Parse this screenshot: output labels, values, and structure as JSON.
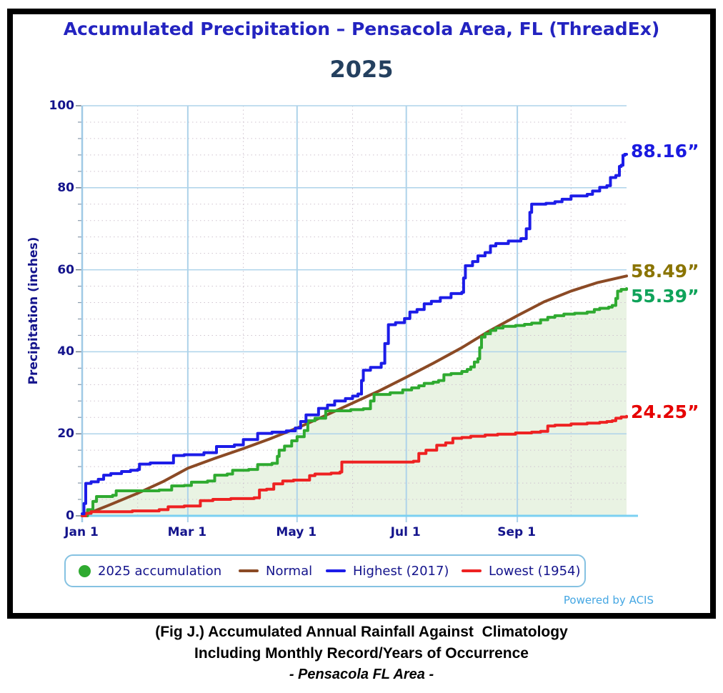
{
  "title": "Accumulated Precipitation – Pensacola Area, FL (ThreadEx)",
  "subtitle": "2025",
  "powered_by": "Powered by ACIS",
  "caption": {
    "line1": "(Fig J.) Accumulated Annual Rainfall Against  Climatology",
    "line2": "Including Monthly Record/Years of Occurrence",
    "line3": "- Pensacola FL Area -"
  },
  "colors": {
    "title": "#2323c0",
    "subtitle": "#24405f",
    "axis_text": "#14148c",
    "grid_major": "#aed3ea",
    "grid_minor": "#cfc3cf",
    "axis_line": "#9fc9e6",
    "baseline": "#7bd0f2",
    "legend_border": "#85c2e2",
    "powered_by": "#45a7e3"
  },
  "chart_data": {
    "type": "line",
    "title": "Accumulated Precipitation – Pensacola Area, FL (ThreadEx)",
    "year_label": "2025",
    "ylabel": "Precipitation (inches)",
    "ylim": [
      0,
      100
    ],
    "y_major_ticks": [
      0,
      20,
      40,
      60,
      80,
      100
    ],
    "y_minor_step": 4,
    "x_range_days": [
      0,
      304
    ],
    "x_major_ticks": [
      {
        "day": 0,
        "label": "Jan 1"
      },
      {
        "day": 59,
        "label": "Mar 1"
      },
      {
        "day": 120,
        "label": "May 1"
      },
      {
        "day": 181,
        "label": "Jul 1"
      },
      {
        "day": 243,
        "label": "Sep 1"
      }
    ],
    "x_minor_tick_days": [
      31,
      90,
      151,
      212,
      273
    ],
    "grid": "major solid light-blue, minor dotted",
    "legend_position": "bottom",
    "series": [
      {
        "name": "2025 accumulation",
        "color": "#2faa30",
        "fill": "#e9f3e3",
        "style": "step",
        "end_value": 55.39,
        "end_label": "55.39”",
        "end_label_color": "#0fa35a",
        "points": [
          [
            0,
            0
          ],
          [
            3,
            1.5
          ],
          [
            6,
            3.5
          ],
          [
            8,
            4.7
          ],
          [
            17,
            5
          ],
          [
            19,
            6.1
          ],
          [
            43,
            6.3
          ],
          [
            50,
            7.3
          ],
          [
            57,
            7.4
          ],
          [
            61,
            8.2
          ],
          [
            70,
            8.5
          ],
          [
            74,
            9.9
          ],
          [
            81,
            10.2
          ],
          [
            84,
            11.1
          ],
          [
            93,
            11.3
          ],
          [
            98,
            12.5
          ],
          [
            106,
            12.8
          ],
          [
            109,
            14.5
          ],
          [
            110,
            16
          ],
          [
            113,
            17
          ],
          [
            117,
            18.3
          ],
          [
            120,
            19.3
          ],
          [
            124,
            20.8
          ],
          [
            126,
            23.2
          ],
          [
            130,
            23.8
          ],
          [
            136,
            25.6
          ],
          [
            150,
            25.9
          ],
          [
            157,
            26.1
          ],
          [
            161,
            28
          ],
          [
            163,
            29.6
          ],
          [
            172,
            30
          ],
          [
            179,
            30.7
          ],
          [
            184,
            31.2
          ],
          [
            188,
            31.7
          ],
          [
            191,
            32.3
          ],
          [
            196,
            32.6
          ],
          [
            199,
            33
          ],
          [
            202,
            34.4
          ],
          [
            206,
            34.7
          ],
          [
            212,
            35.2
          ],
          [
            215,
            35.7
          ],
          [
            217,
            36.3
          ],
          [
            219,
            37.5
          ],
          [
            221,
            38.3
          ],
          [
            222,
            41
          ],
          [
            223,
            43.6
          ],
          [
            225,
            44.4
          ],
          [
            228,
            45.2
          ],
          [
            231,
            45.8
          ],
          [
            235,
            46.2
          ],
          [
            242,
            46.4
          ],
          [
            247,
            46.7
          ],
          [
            251,
            47
          ],
          [
            256,
            47.8
          ],
          [
            260,
            48.4
          ],
          [
            264,
            48.8
          ],
          [
            269,
            49.2
          ],
          [
            275,
            49.4
          ],
          [
            282,
            49.7
          ],
          [
            286,
            50.3
          ],
          [
            289,
            50.6
          ],
          [
            294,
            50.9
          ],
          [
            296,
            51.3
          ],
          [
            298,
            53
          ],
          [
            299,
            54.8
          ],
          [
            301,
            55.2
          ],
          [
            304,
            55.39
          ]
        ]
      },
      {
        "name": "Normal",
        "color": "#8b4a25",
        "style": "smooth",
        "end_value": 58.49,
        "end_label": "58.49”",
        "end_label_color": "#8a7400",
        "points": [
          [
            0,
            0
          ],
          [
            15,
            2.6
          ],
          [
            31,
            5.5
          ],
          [
            45,
            8.3
          ],
          [
            59,
            11.6
          ],
          [
            74,
            14
          ],
          [
            90,
            16.4
          ],
          [
            105,
            18.8
          ],
          [
            120,
            21.4
          ],
          [
            135,
            24.3
          ],
          [
            151,
            27.5
          ],
          [
            166,
            30.5
          ],
          [
            181,
            33.8
          ],
          [
            196,
            37.2
          ],
          [
            212,
            41
          ],
          [
            227,
            45
          ],
          [
            243,
            48.8
          ],
          [
            258,
            52.2
          ],
          [
            273,
            54.8
          ],
          [
            288,
            56.9
          ],
          [
            304,
            58.49
          ]
        ]
      },
      {
        "name": "Highest (2017)",
        "color": "#1c1ce8",
        "style": "step",
        "end_value": 88.16,
        "end_label": "88.16”",
        "end_label_color": "#1a1ae0",
        "points": [
          [
            0,
            0.5
          ],
          [
            1,
            3
          ],
          [
            2,
            7.9
          ],
          [
            5,
            8.3
          ],
          [
            9,
            8.9
          ],
          [
            12,
            9.9
          ],
          [
            16,
            10.3
          ],
          [
            22,
            10.8
          ],
          [
            27,
            11.1
          ],
          [
            31,
            11.3
          ],
          [
            32,
            12.6
          ],
          [
            38,
            12.9
          ],
          [
            51,
            14.7
          ],
          [
            57,
            14.9
          ],
          [
            68,
            15.4
          ],
          [
            75,
            16.9
          ],
          [
            85,
            17.3
          ],
          [
            90,
            18.6
          ],
          [
            98,
            20.1
          ],
          [
            106,
            20.4
          ],
          [
            114,
            20.7
          ],
          [
            119,
            21.4
          ],
          [
            122,
            23
          ],
          [
            125,
            24.6
          ],
          [
            132,
            26.2
          ],
          [
            137,
            27
          ],
          [
            141,
            28
          ],
          [
            147,
            28.6
          ],
          [
            151,
            29.2
          ],
          [
            154,
            29.7
          ],
          [
            156,
            33
          ],
          [
            157,
            35.5
          ],
          [
            161,
            36.2
          ],
          [
            167,
            37.2
          ],
          [
            169,
            42
          ],
          [
            171,
            46.6
          ],
          [
            175,
            47.1
          ],
          [
            180,
            48.1
          ],
          [
            183,
            49.7
          ],
          [
            187,
            50.3
          ],
          [
            191,
            51.7
          ],
          [
            195,
            52.3
          ],
          [
            200,
            53.2
          ],
          [
            206,
            54.2
          ],
          [
            212,
            54.5
          ],
          [
            213,
            58
          ],
          [
            214,
            61
          ],
          [
            218,
            62
          ],
          [
            221,
            63.4
          ],
          [
            225,
            64.2
          ],
          [
            228,
            65.8
          ],
          [
            231,
            66.4
          ],
          [
            238,
            67
          ],
          [
            245,
            67.6
          ],
          [
            248,
            70
          ],
          [
            250,
            74
          ],
          [
            251,
            76
          ],
          [
            259,
            76.2
          ],
          [
            264,
            76.6
          ],
          [
            268,
            77.2
          ],
          [
            273,
            78
          ],
          [
            282,
            78.4
          ],
          [
            285,
            79.2
          ],
          [
            289,
            80.1
          ],
          [
            293,
            80.5
          ],
          [
            295,
            82.5
          ],
          [
            298,
            83
          ],
          [
            300,
            85.2
          ],
          [
            301,
            85.5
          ],
          [
            302,
            87.9
          ],
          [
            303,
            88.16
          ],
          [
            304,
            88.16
          ]
        ]
      },
      {
        "name": "Lowest (1954)",
        "color": "#ee2222",
        "style": "step",
        "end_value": 24.25,
        "end_label": "24.25”",
        "end_label_color": "#e60000",
        "points": [
          [
            0,
            0
          ],
          [
            2,
            0.6
          ],
          [
            5,
            1
          ],
          [
            28,
            1.2
          ],
          [
            43,
            1.5
          ],
          [
            48,
            2.2
          ],
          [
            57,
            2.4
          ],
          [
            66,
            3.7
          ],
          [
            73,
            4
          ],
          [
            83,
            4.2
          ],
          [
            96,
            4.4
          ],
          [
            99,
            6.3
          ],
          [
            103,
            6.5
          ],
          [
            107,
            7.8
          ],
          [
            112,
            8.5
          ],
          [
            118,
            8.7
          ],
          [
            127,
            9.8
          ],
          [
            130,
            10.2
          ],
          [
            139,
            10.4
          ],
          [
            144,
            10.7
          ],
          [
            145,
            13.1
          ],
          [
            185,
            13.3
          ],
          [
            188,
            15.2
          ],
          [
            192,
            16
          ],
          [
            198,
            17.2
          ],
          [
            203,
            17.8
          ],
          [
            207,
            18.9
          ],
          [
            212,
            19.1
          ],
          [
            217,
            19.4
          ],
          [
            225,
            19.7
          ],
          [
            232,
            19.9
          ],
          [
            242,
            20.2
          ],
          [
            251,
            20.4
          ],
          [
            256,
            20.6
          ],
          [
            260,
            21.9
          ],
          [
            264,
            22.1
          ],
          [
            273,
            22.4
          ],
          [
            282,
            22.6
          ],
          [
            289,
            22.8
          ],
          [
            293,
            23
          ],
          [
            296,
            23.2
          ],
          [
            298,
            23.8
          ],
          [
            301,
            24.1
          ],
          [
            304,
            24.25
          ]
        ]
      }
    ]
  },
  "legend": {
    "items": [
      {
        "label": "2025 accumulation",
        "marker": "circle",
        "color": "#2faa30"
      },
      {
        "label": "Normal",
        "marker": "dash",
        "color": "#8b4a25"
      },
      {
        "label": "Highest (2017)",
        "marker": "dash",
        "color": "#1c1ce8"
      },
      {
        "label": "Lowest (1954)",
        "marker": "dash",
        "color": "#ee2222"
      }
    ]
  }
}
